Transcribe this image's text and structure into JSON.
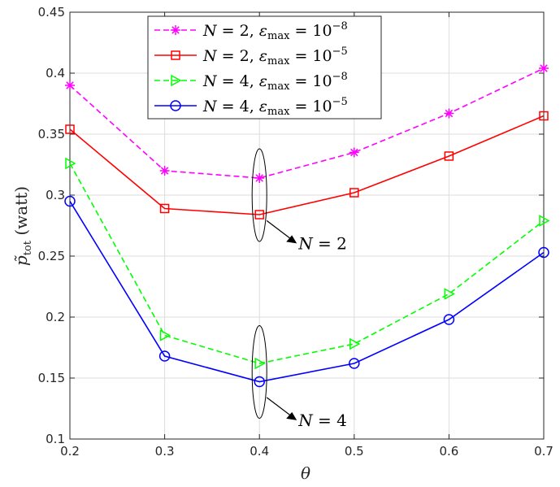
{
  "chart_data": {
    "type": "line",
    "xlabel": "θ",
    "ylabel": "p̃_tot (watt)",
    "ylabel_main": "p̃",
    "ylabel_sub": "tot",
    "ylabel_unit": "(watt)",
    "xlim": [
      0.2,
      0.7
    ],
    "ylim": [
      0.1,
      0.45
    ],
    "x_ticks": [
      "0.2",
      "0.3",
      "0.4",
      "0.5",
      "0.6",
      "0.7"
    ],
    "y_ticks": [
      "0.1",
      "0.15",
      "0.2",
      "0.25",
      "0.3",
      "0.35",
      "0.4",
      "0.45"
    ],
    "grid": true,
    "legend_position": "top-left",
    "x": [
      0.2,
      0.3,
      0.4,
      0.5,
      0.6,
      0.7
    ],
    "series": [
      {
        "name": "N = 2, εmax = 10^-8",
        "N": "N = 2",
        "eps": "ε",
        "epsub": "max",
        "exp": "−8",
        "color": "#ff00ff",
        "dash": true,
        "marker": "star",
        "values": [
          0.39,
          0.32,
          0.314,
          0.335,
          0.367,
          0.404
        ]
      },
      {
        "name": "N = 2, εmax = 10^-5",
        "N": "N = 2",
        "eps": "ε",
        "epsub": "max",
        "exp": "−5",
        "color": "#ff0000",
        "dash": false,
        "marker": "square",
        "values": [
          0.354,
          0.289,
          0.284,
          0.302,
          0.332,
          0.365
        ]
      },
      {
        "name": "N = 4, εmax = 10^-8",
        "N": "N = 4",
        "eps": "ε",
        "epsub": "max",
        "exp": "−8",
        "color": "#00ff00",
        "dash": true,
        "marker": "triangle-right",
        "values": [
          0.326,
          0.185,
          0.162,
          0.178,
          0.219,
          0.279
        ]
      },
      {
        "name": "N = 4, εmax = 10^-5",
        "N": "N = 4",
        "eps": "ε",
        "epsub": "max",
        "exp": "−5",
        "color": "#0000ff",
        "dash": false,
        "marker": "circle",
        "values": [
          0.295,
          0.168,
          0.147,
          0.162,
          0.198,
          0.253
        ]
      }
    ],
    "annotations": [
      {
        "text": "N = 2",
        "x": 0.4,
        "y_center": 0.3,
        "y_half": 0.038
      },
      {
        "text": "N = 4",
        "x": 0.4,
        "y_center": 0.155,
        "y_half": 0.038
      }
    ]
  }
}
